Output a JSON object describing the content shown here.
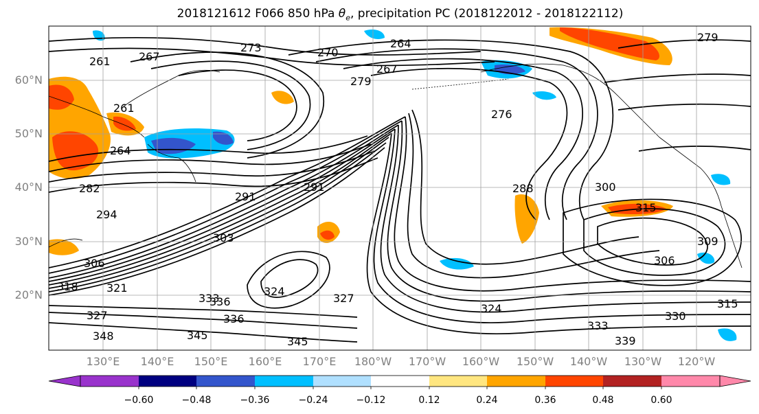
{
  "title": {
    "prefix": "2018121612 F066 850 hPa ",
    "theta": "θ",
    "subscript": "e",
    "suffix": ", precipitation PC (2018122012 - 2018122112)"
  },
  "lat_labels": [
    "60°N",
    "50°N",
    "40°N",
    "30°N",
    "20°N"
  ],
  "lon_labels": [
    "130°E",
    "140°E",
    "150°E",
    "160°E",
    "170°E",
    "180°W",
    "170°W",
    "160°W",
    "150°W",
    "140°W",
    "130°W",
    "120°W"
  ],
  "contour_labels": [
    "261",
    "264",
    "267",
    "270",
    "273",
    "276",
    "279",
    "282",
    "288",
    "291",
    "294",
    "300",
    "303",
    "306",
    "309",
    "315",
    "318",
    "321",
    "324",
    "327",
    "330",
    "333",
    "336",
    "339",
    "345",
    "348"
  ],
  "colorbar": {
    "ticks": [
      "−0.60",
      "−0.48",
      "−0.36",
      "−0.24",
      "−0.12",
      "0.12",
      "0.24",
      "0.36",
      "0.48",
      "0.60"
    ],
    "colors": [
      "#9933cc",
      "#000080",
      "#3355cc",
      "#00bfff",
      "#b0e0ff",
      "#ffffff",
      "#ffe680",
      "#ffa500",
      "#ff4500",
      "#b22222",
      "#ff88aa"
    ]
  }
}
